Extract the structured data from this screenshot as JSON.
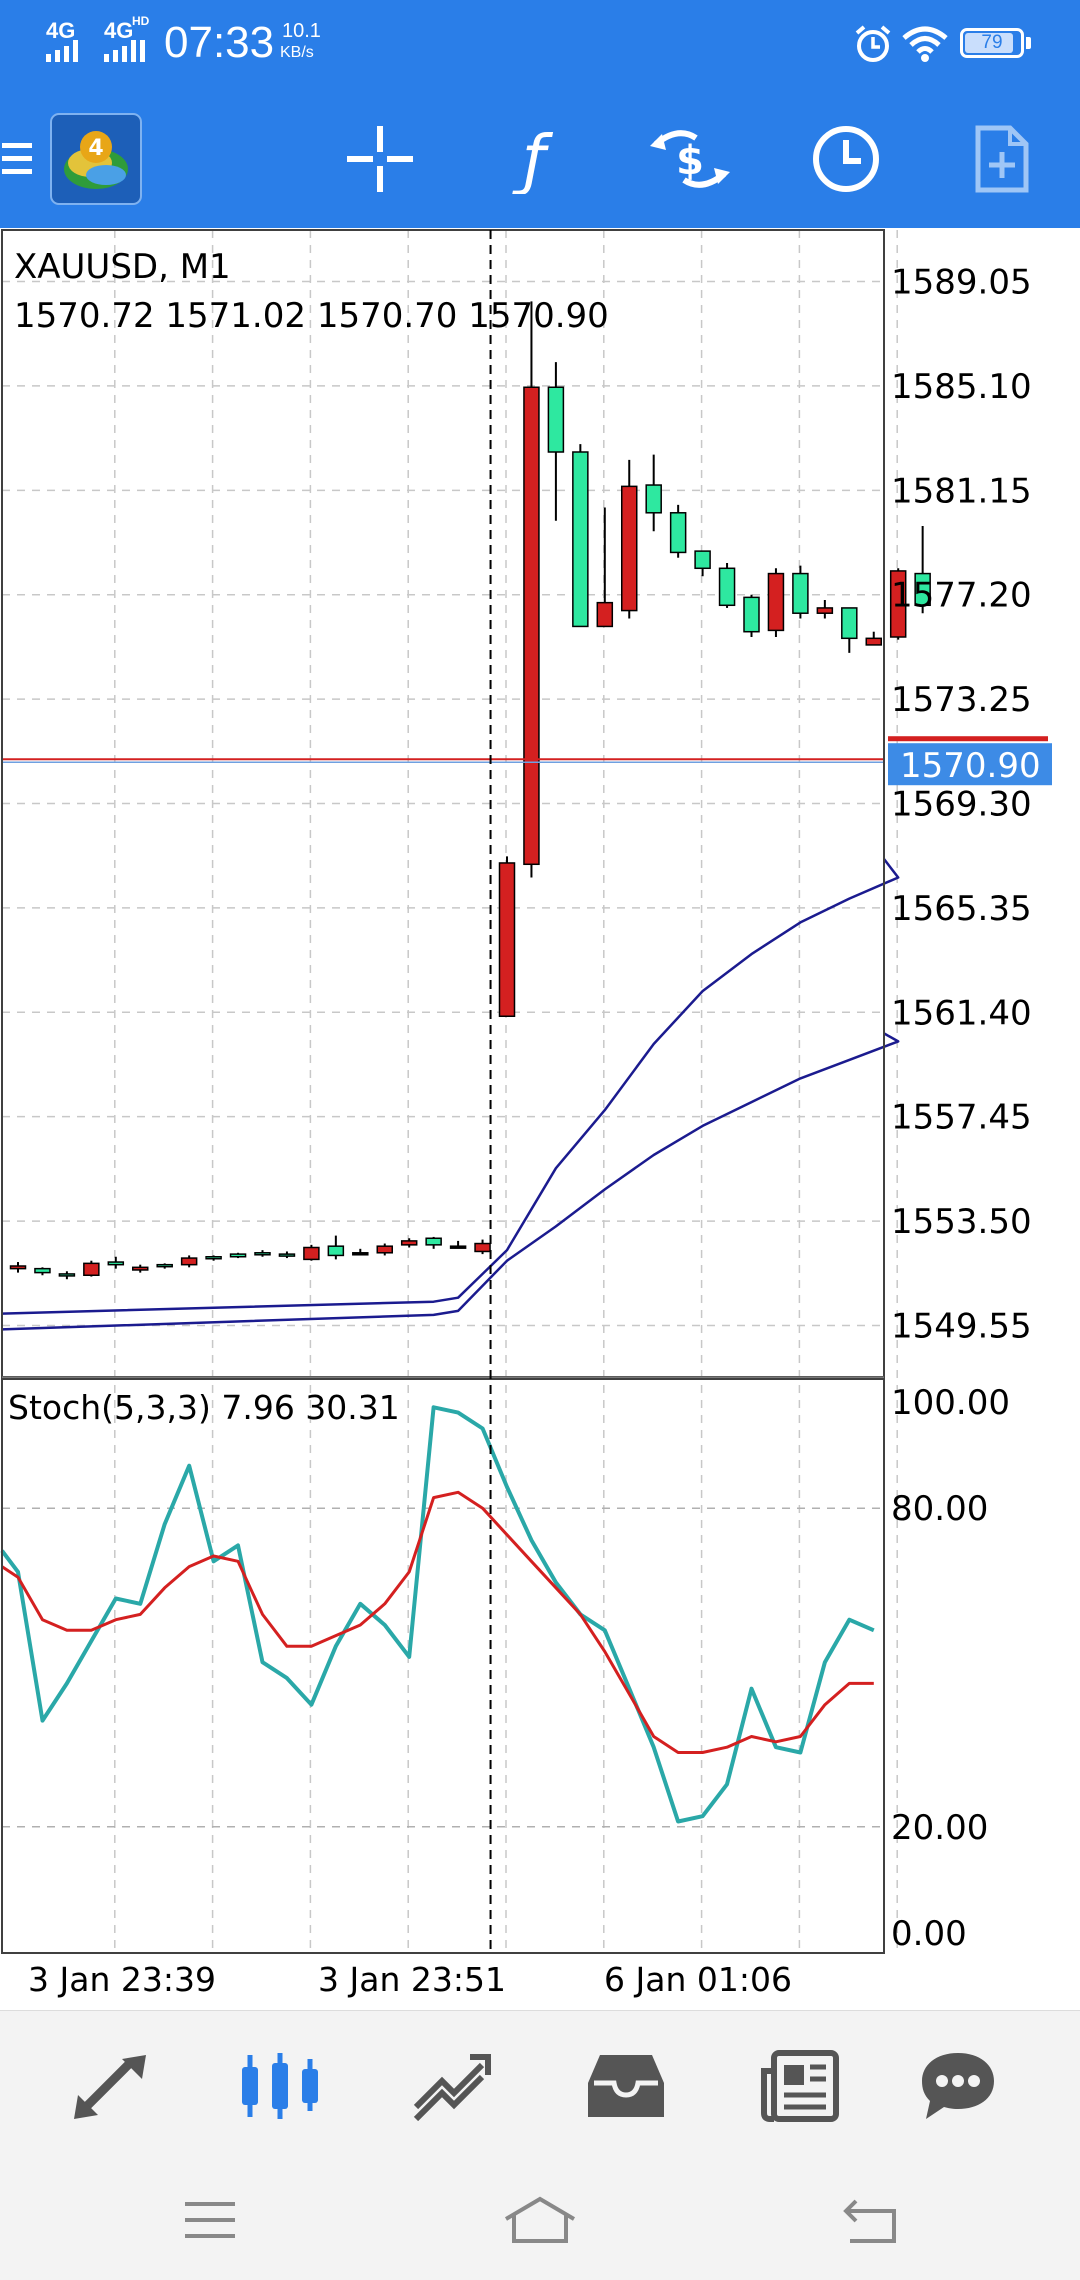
{
  "status_bar": {
    "network1": "4G",
    "network2": "4G",
    "network2_sup": "HD",
    "time": "07:33",
    "speed_value": "10.1",
    "speed_unit": "KB/s",
    "battery": "79",
    "icons": [
      "signal-icon",
      "alarm-icon",
      "wifi-icon",
      "battery-icon"
    ]
  },
  "toolbar": {
    "icons": [
      "menu-icon",
      "mt4-logo-icon",
      "crosshair-icon",
      "indicators-icon",
      "trade-icon",
      "timeframe-icon",
      "add-template-icon"
    ],
    "accent": "#2a7ee8"
  },
  "chart": {
    "symbol_label": "XAUUSD, M1",
    "ohlc_label": "1570.72 1571.02 1570.70 1570.90",
    "price_ticks": [
      "1589.05",
      "1585.10",
      "1581.15",
      "1577.20",
      "1573.25",
      "1569.30",
      "1565.35",
      "1561.40",
      "1557.45",
      "1553.50",
      "1549.55"
    ],
    "current_price": "1570.90",
    "stoch_label": "Stoch(5,3,3) 7.96 30.31",
    "stoch_ticks": [
      "100.00",
      "80.00",
      "20.00",
      "0.00"
    ],
    "time_labels": [
      "3 Jan 23:39",
      "3 Jan 23:51",
      "6 Jan 01:06"
    ],
    "colors": {
      "bull": "#2ee8a0",
      "bear": "#d42020",
      "ma": "#1b1b8f",
      "stoch_main": "#2aa8a8",
      "stoch_signal": "#d42020",
      "price_line": "#d42020"
    }
  },
  "chart_data": {
    "type": "candlestick",
    "title": "XAUUSD, M1",
    "ylim": [
      1547.6,
      1591.0
    ],
    "candles": [
      {
        "o": 1551.8,
        "h": 1551.95,
        "c": 1551.7,
        "l": 1551.55,
        "dir": "down"
      },
      {
        "o": 1551.55,
        "h": 1551.75,
        "c": 1551.7,
        "l": 1551.45,
        "dir": "up"
      },
      {
        "o": 1551.45,
        "h": 1551.6,
        "c": 1551.5,
        "l": 1551.3,
        "dir": "up"
      },
      {
        "o": 1551.9,
        "h": 1552.0,
        "c": 1551.45,
        "l": 1551.4,
        "dir": "down"
      },
      {
        "o": 1551.85,
        "h": 1552.15,
        "c": 1551.95,
        "l": 1551.7,
        "dir": "up"
      },
      {
        "o": 1551.75,
        "h": 1551.85,
        "c": 1551.65,
        "l": 1551.55,
        "dir": "down"
      },
      {
        "o": 1551.8,
        "h": 1551.9,
        "c": 1551.85,
        "l": 1551.7,
        "dir": "up"
      },
      {
        "o": 1552.1,
        "h": 1552.2,
        "c": 1551.85,
        "l": 1551.75,
        "dir": "down"
      },
      {
        "o": 1552.1,
        "h": 1552.2,
        "c": 1552.15,
        "l": 1552.0,
        "dir": "up"
      },
      {
        "o": 1552.15,
        "h": 1552.3,
        "c": 1552.25,
        "l": 1552.1,
        "dir": "up"
      },
      {
        "o": 1552.25,
        "h": 1552.4,
        "c": 1552.3,
        "l": 1552.15,
        "dir": "up"
      },
      {
        "o": 1552.2,
        "h": 1552.35,
        "c": 1552.25,
        "l": 1552.1,
        "dir": "up"
      },
      {
        "o": 1552.5,
        "h": 1552.6,
        "c": 1552.05,
        "l": 1552.0,
        "dir": "down"
      },
      {
        "o": 1552.2,
        "h": 1552.95,
        "c": 1552.55,
        "l": 1552.05,
        "dir": "up"
      },
      {
        "o": 1552.3,
        "h": 1552.45,
        "c": 1552.3,
        "l": 1552.2,
        "dir": "flat"
      },
      {
        "o": 1552.55,
        "h": 1552.65,
        "c": 1552.3,
        "l": 1552.2,
        "dir": "down"
      },
      {
        "o": 1552.75,
        "h": 1552.85,
        "c": 1552.6,
        "l": 1552.5,
        "dir": "down"
      },
      {
        "o": 1552.6,
        "h": 1552.9,
        "c": 1552.85,
        "l": 1552.45,
        "dir": "up"
      },
      {
        "o": 1552.55,
        "h": 1552.75,
        "c": 1552.55,
        "l": 1552.5,
        "dir": "flat"
      },
      {
        "o": 1552.65,
        "h": 1552.8,
        "c": 1552.35,
        "l": 1552.25,
        "dir": "down"
      },
      {
        "o": 1567.05,
        "h": 1567.3,
        "c": 1561.25,
        "l": 1561.25,
        "dir": "down"
      },
      {
        "o": 1585.05,
        "h": 1588.3,
        "c": 1567.0,
        "l": 1566.5,
        "dir": "down"
      },
      {
        "o": 1582.6,
        "h": 1586.0,
        "c": 1585.05,
        "l": 1580.0,
        "dir": "up"
      },
      {
        "o": 1576.0,
        "h": 1582.9,
        "c": 1582.6,
        "l": 1576.0,
        "dir": "up"
      },
      {
        "o": 1576.9,
        "h": 1580.5,
        "c": 1576.0,
        "l": 1576.0,
        "dir": "down"
      },
      {
        "o": 1581.3,
        "h": 1582.3,
        "c": 1576.6,
        "l": 1576.3,
        "dir": "down"
      },
      {
        "o": 1580.3,
        "h": 1582.5,
        "c": 1581.35,
        "l": 1579.6,
        "dir": "up"
      },
      {
        "o": 1578.8,
        "h": 1580.6,
        "c": 1580.3,
        "l": 1578.6,
        "dir": "up"
      },
      {
        "o": 1578.2,
        "h": 1578.8,
        "c": 1578.85,
        "l": 1577.9,
        "dir": "up"
      },
      {
        "o": 1576.8,
        "h": 1578.4,
        "c": 1578.2,
        "l": 1576.7,
        "dir": "up"
      },
      {
        "o": 1575.8,
        "h": 1577.2,
        "c": 1577.1,
        "l": 1575.6,
        "dir": "up"
      },
      {
        "o": 1578.0,
        "h": 1578.2,
        "c": 1575.85,
        "l": 1575.6,
        "dir": "down"
      },
      {
        "o": 1576.5,
        "h": 1578.3,
        "c": 1578.0,
        "l": 1576.3,
        "dir": "up"
      },
      {
        "o": 1576.7,
        "h": 1577.0,
        "c": 1576.5,
        "l": 1576.3,
        "dir": "down"
      },
      {
        "o": 1575.55,
        "h": 1576.7,
        "c": 1576.7,
        "l": 1575.0,
        "dir": "up"
      },
      {
        "o": 1575.55,
        "h": 1575.8,
        "c": 1575.3,
        "l": 1575.3,
        "dir": "down"
      },
      {
        "o": 1578.1,
        "h": 1578.2,
        "c": 1575.6,
        "l": 1575.5,
        "dir": "down"
      },
      {
        "o": 1576.8,
        "h": 1579.8,
        "c": 1578.0,
        "l": 1576.5,
        "dir": "up"
      }
    ],
    "ma_fast": [
      [
        0,
        1550.0
      ],
      [
        17,
        1550.45
      ],
      [
        18,
        1550.6
      ],
      [
        19,
        1551.5
      ],
      [
        20,
        1552.4
      ],
      [
        22,
        1555.5
      ],
      [
        24,
        1557.7
      ],
      [
        26,
        1560.2
      ],
      [
        28,
        1562.2
      ],
      [
        30,
        1563.6
      ],
      [
        32,
        1564.8
      ],
      [
        34,
        1565.7
      ],
      [
        36,
        1566.5
      ],
      [
        37,
        1567.2
      ]
    ],
    "ma_slow": [
      [
        0,
        1549.4
      ],
      [
        17,
        1549.95
      ],
      [
        18,
        1550.1
      ],
      [
        20,
        1552.0
      ],
      [
        22,
        1553.3
      ],
      [
        24,
        1554.7
      ],
      [
        26,
        1556.0
      ],
      [
        28,
        1557.1
      ],
      [
        30,
        1558.0
      ],
      [
        32,
        1558.9
      ],
      [
        34,
        1559.6
      ],
      [
        36,
        1560.3
      ],
      [
        37,
        1560.6
      ]
    ],
    "stoch": {
      "ylim": [
        0,
        100
      ],
      "main": [
        [
          -0.6,
          72
        ],
        [
          0,
          68
        ],
        [
          1,
          40
        ],
        [
          2,
          47
        ],
        [
          3,
          55
        ],
        [
          4,
          63
        ],
        [
          5,
          62
        ],
        [
          6,
          77
        ],
        [
          7,
          88
        ],
        [
          8,
          70
        ],
        [
          9,
          73
        ],
        [
          10,
          51
        ],
        [
          11,
          48
        ],
        [
          12,
          43
        ],
        [
          13,
          54
        ],
        [
          14,
          62
        ],
        [
          15,
          58
        ],
        [
          16,
          52
        ],
        [
          17,
          99
        ],
        [
          18,
          98
        ],
        [
          19,
          95
        ],
        [
          20,
          84
        ],
        [
          21,
          74
        ],
        [
          22,
          66
        ],
        [
          23,
          60
        ],
        [
          24,
          57
        ],
        [
          25,
          46
        ],
        [
          26,
          35
        ],
        [
          27,
          21
        ],
        [
          28,
          22
        ],
        [
          29,
          28
        ],
        [
          30,
          46
        ],
        [
          31,
          35
        ],
        [
          32,
          34
        ],
        [
          33,
          51
        ],
        [
          34,
          59
        ],
        [
          35,
          57
        ]
      ],
      "signal": [
        [
          -0.6,
          69
        ],
        [
          0,
          67
        ],
        [
          1,
          59
        ],
        [
          2,
          57
        ],
        [
          3,
          57
        ],
        [
          4,
          59
        ],
        [
          5,
          60
        ],
        [
          6,
          65
        ],
        [
          7,
          69
        ],
        [
          8,
          71
        ],
        [
          9,
          70
        ],
        [
          10,
          60
        ],
        [
          11,
          54
        ],
        [
          12,
          54
        ],
        [
          13,
          56
        ],
        [
          14,
          58
        ],
        [
          15,
          62
        ],
        [
          16,
          68
        ],
        [
          17,
          82
        ],
        [
          18,
          83
        ],
        [
          19,
          80
        ],
        [
          20,
          75
        ],
        [
          21,
          70
        ],
        [
          22,
          65
        ],
        [
          23,
          60
        ],
        [
          24,
          53
        ],
        [
          25,
          45
        ],
        [
          26,
          37
        ],
        [
          27,
          34
        ],
        [
          28,
          34
        ],
        [
          29,
          35
        ],
        [
          30,
          37
        ],
        [
          31,
          36
        ],
        [
          32,
          37
        ],
        [
          33,
          43
        ],
        [
          34,
          47
        ],
        [
          35,
          47
        ]
      ]
    }
  },
  "bottom_nav": {
    "items": [
      "quotes-icon",
      "chart-icon",
      "trade-icon",
      "history-icon",
      "news-icon",
      "messages-icon"
    ],
    "active": "chart-icon"
  },
  "system_nav": {
    "items": [
      "recents-icon",
      "home-icon",
      "back-icon"
    ]
  }
}
